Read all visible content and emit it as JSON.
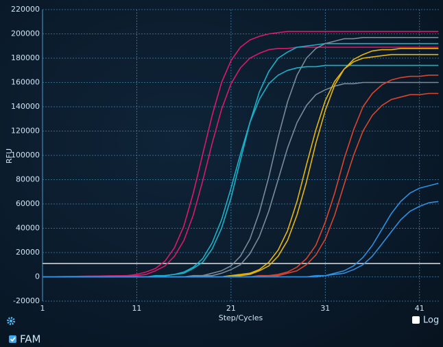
{
  "chart_data": {
    "type": "line",
    "x_label": "Step/Cycles",
    "y_label": "RFU",
    "x": [
      1,
      10,
      11,
      12,
      13,
      14,
      15,
      16,
      17,
      18,
      19,
      20,
      21,
      22,
      23,
      24,
      25,
      26,
      27,
      28,
      29,
      30,
      31,
      32,
      33,
      34,
      35,
      36,
      37,
      38,
      39,
      40,
      41,
      42,
      43
    ],
    "xlim": [
      1,
      43.2
    ],
    "xticks": [
      1,
      11,
      21,
      31,
      41
    ],
    "ylim": [
      -20000,
      220000
    ],
    "yticks": [
      -20000,
      0,
      20000,
      40000,
      60000,
      80000,
      100000,
      120000,
      140000,
      160000,
      180000,
      200000,
      220000
    ],
    "grid": true,
    "log_scale": false,
    "threshold": 11000,
    "threshold_color": "#a9b0b6",
    "channel": "FAM",
    "log_toggle": "Log",
    "series": [
      {
        "color": "#d81b6a",
        "values": [
          0,
          1000,
          2000,
          4000,
          7000,
          13000,
          24000,
          42000,
          69000,
          101000,
          133000,
          160000,
          178000,
          189000,
          195000,
          198000,
          200000,
          201000,
          202000,
          202000,
          202000,
          202000,
          202000,
          202000,
          202000,
          202000,
          202000,
          202000,
          202000,
          202000,
          202000,
          202000,
          202000,
          202000,
          202000
        ]
      },
      {
        "color": "#d81b6a",
        "values": [
          0,
          1000,
          1000,
          2000,
          5000,
          9000,
          17000,
          30000,
          51000,
          79000,
          110000,
          138000,
          159000,
          172000,
          180000,
          184000,
          187000,
          188000,
          188000,
          189000,
          189000,
          189000,
          189000,
          189000,
          189000,
          189000,
          189000,
          189000,
          189000,
          189000,
          189000,
          189000,
          189000,
          189000,
          189000
        ]
      },
      {
        "color": "#18b2c9",
        "values": [
          0,
          0,
          0,
          0,
          1000,
          1000,
          2000,
          4000,
          8000,
          15000,
          28000,
          47000,
          73000,
          101000,
          127000,
          146000,
          159000,
          166000,
          170000,
          172000,
          173000,
          173000,
          174000,
          174000,
          174000,
          174000,
          174000,
          174000,
          174000,
          174000,
          174000,
          174000,
          174000,
          174000,
          174000
        ]
      },
      {
        "color": "#18b2c9",
        "values": [
          0,
          0,
          0,
          0,
          0,
          1000,
          2000,
          3000,
          7000,
          12000,
          23000,
          40000,
          65000,
          96000,
          127000,
          152000,
          169000,
          180000,
          185000,
          189000,
          190000,
          191000,
          192000,
          192000,
          192000,
          192000,
          192000,
          192000,
          192000,
          192000,
          192000,
          192000,
          192000,
          192000,
          192000
        ]
      },
      {
        "color": "#7b8b9a",
        "values": [
          0,
          0,
          0,
          0,
          0,
          0,
          0,
          0,
          1000,
          1000,
          3000,
          5000,
          9000,
          17000,
          31000,
          53000,
          82000,
          115000,
          144000,
          166000,
          180000,
          188000,
          192000,
          194000,
          196000,
          196000,
          197000,
          197000,
          197000,
          197000,
          197000,
          197000,
          197000,
          197000,
          197000
        ]
      },
      {
        "color": "#7b8b9a",
        "values": [
          0,
          0,
          0,
          0,
          0,
          0,
          0,
          0,
          0,
          1000,
          1000,
          3000,
          6000,
          10000,
          19000,
          33000,
          54000,
          80000,
          106000,
          127000,
          141000,
          150000,
          154000,
          157000,
          159000,
          159000,
          160000,
          160000,
          160000,
          160000,
          160000,
          160000,
          160000,
          160000,
          160000
        ]
      },
      {
        "color": "#e8b60c",
        "values": [
          0,
          0,
          0,
          0,
          0,
          0,
          0,
          0,
          0,
          0,
          0,
          0,
          1000,
          2000,
          3000,
          6000,
          12000,
          22000,
          38000,
          62000,
          92000,
          121000,
          145000,
          161000,
          171000,
          177000,
          180000,
          181000,
          182000,
          183000,
          183000,
          183000,
          183000,
          183000,
          183000
        ]
      },
      {
        "color": "#e8b60c",
        "values": [
          0,
          0,
          0,
          0,
          0,
          0,
          0,
          0,
          0,
          0,
          0,
          0,
          1000,
          1000,
          2000,
          5000,
          9000,
          17000,
          30000,
          51000,
          78000,
          110000,
          137000,
          158000,
          171000,
          179000,
          183000,
          186000,
          187000,
          187000,
          188000,
          188000,
          188000,
          188000,
          188000
        ]
      },
      {
        "color": "#dc452f",
        "values": [
          0,
          0,
          0,
          0,
          0,
          0,
          0,
          0,
          0,
          0,
          0,
          0,
          0,
          0,
          0,
          1000,
          1000,
          2000,
          4000,
          8000,
          15000,
          26000,
          45000,
          69000,
          97000,
          121000,
          140000,
          151000,
          158000,
          162000,
          164000,
          165000,
          165000,
          166000,
          166000
        ]
      },
      {
        "color": "#dc452f",
        "values": [
          0,
          0,
          0,
          0,
          0,
          0,
          0,
          0,
          0,
          0,
          0,
          0,
          0,
          0,
          0,
          0,
          1000,
          1000,
          3000,
          5000,
          10000,
          18000,
          31000,
          51000,
          76000,
          100000,
          120000,
          133000,
          141000,
          146000,
          148000,
          150000,
          150000,
          151000,
          151000
        ]
      },
      {
        "color": "#2f8fe0",
        "values": [
          0,
          0,
          0,
          0,
          0,
          0,
          0,
          0,
          0,
          0,
          0,
          0,
          0,
          0,
          0,
          0,
          0,
          0,
          0,
          0,
          0,
          1000,
          1000,
          3000,
          5000,
          9000,
          16000,
          26000,
          39000,
          52000,
          62000,
          69000,
          73000,
          75000,
          77000
        ]
      },
      {
        "color": "#2f8fe0",
        "values": [
          0,
          0,
          0,
          0,
          0,
          0,
          0,
          0,
          0,
          0,
          0,
          0,
          0,
          0,
          0,
          0,
          0,
          0,
          0,
          0,
          0,
          0,
          1000,
          2000,
          3000,
          6000,
          10000,
          17000,
          27000,
          37000,
          47000,
          54000,
          58000,
          61000,
          62000
        ]
      }
    ]
  }
}
